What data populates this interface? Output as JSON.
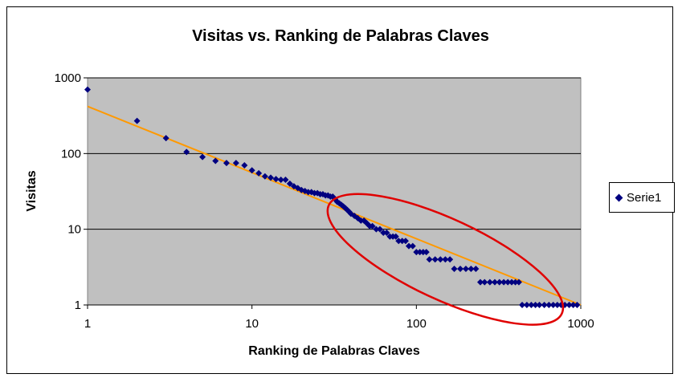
{
  "chart_data": {
    "type": "scatter",
    "title": "Visitas vs. Ranking de Palabras Claves",
    "xlabel": "Ranking de Palabras Claves",
    "ylabel": "Visitas",
    "xscale": "log",
    "yscale": "log",
    "xlim": [
      1,
      1000
    ],
    "ylim": [
      1,
      1000
    ],
    "x_ticks": [
      "1",
      "10",
      "100",
      "1000"
    ],
    "y_ticks": [
      "1",
      "10",
      "100",
      "1000"
    ],
    "grid": "horizontal",
    "plot_background": "#c0c0c0",
    "legend_placement": "right",
    "series": [
      {
        "name": "Serie1",
        "color": "#000080",
        "marker": "diamond",
        "points": [
          [
            1,
            700
          ],
          [
            2,
            270
          ],
          [
            3,
            160
          ],
          [
            4,
            105
          ],
          [
            5,
            90
          ],
          [
            6,
            80
          ],
          [
            7,
            75
          ],
          [
            8,
            75
          ],
          [
            9,
            70
          ],
          [
            10,
            60
          ],
          [
            11,
            55
          ],
          [
            12,
            50
          ],
          [
            13,
            48
          ],
          [
            14,
            46
          ],
          [
            15,
            45
          ],
          [
            16,
            45
          ],
          [
            17,
            40
          ],
          [
            18,
            37
          ],
          [
            19,
            35
          ],
          [
            20,
            33
          ],
          [
            21,
            32
          ],
          [
            22,
            31
          ],
          [
            23,
            31
          ],
          [
            24,
            30
          ],
          [
            25,
            30
          ],
          [
            26,
            29
          ],
          [
            27,
            29
          ],
          [
            28,
            28
          ],
          [
            29,
            28
          ],
          [
            30,
            27
          ],
          [
            31,
            27
          ],
          [
            32,
            25
          ],
          [
            33,
            23
          ],
          [
            34,
            22
          ],
          [
            35,
            21
          ],
          [
            36,
            20
          ],
          [
            37,
            19
          ],
          [
            38,
            18
          ],
          [
            39,
            17
          ],
          [
            40,
            16
          ],
          [
            42,
            15
          ],
          [
            44,
            14
          ],
          [
            46,
            13
          ],
          [
            48,
            13
          ],
          [
            50,
            12
          ],
          [
            52,
            11
          ],
          [
            54,
            11
          ],
          [
            57,
            10
          ],
          [
            60,
            10
          ],
          [
            63,
            9
          ],
          [
            66,
            9
          ],
          [
            69,
            8
          ],
          [
            72,
            8
          ],
          [
            75,
            8
          ],
          [
            78,
            7
          ],
          [
            82,
            7
          ],
          [
            86,
            7
          ],
          [
            90,
            6
          ],
          [
            95,
            6
          ],
          [
            100,
            5
          ],
          [
            105,
            5
          ],
          [
            110,
            5
          ],
          [
            115,
            5
          ],
          [
            120,
            4
          ],
          [
            130,
            4
          ],
          [
            140,
            4
          ],
          [
            150,
            4
          ],
          [
            160,
            4
          ],
          [
            170,
            3
          ],
          [
            185,
            3
          ],
          [
            200,
            3
          ],
          [
            215,
            3
          ],
          [
            230,
            3
          ],
          [
            245,
            2
          ],
          [
            260,
            2
          ],
          [
            280,
            2
          ],
          [
            300,
            2
          ],
          [
            320,
            2
          ],
          [
            340,
            2
          ],
          [
            360,
            2
          ],
          [
            380,
            2
          ],
          [
            400,
            2
          ],
          [
            420,
            2
          ],
          [
            440,
            1
          ],
          [
            470,
            1
          ],
          [
            500,
            1
          ],
          [
            530,
            1
          ],
          [
            560,
            1
          ],
          [
            600,
            1
          ],
          [
            640,
            1
          ],
          [
            680,
            1
          ],
          [
            720,
            1
          ],
          [
            760,
            1
          ],
          [
            800,
            1
          ],
          [
            850,
            1
          ],
          [
            900,
            1
          ],
          [
            950,
            1
          ]
        ]
      }
    ],
    "trendline": {
      "type": "power",
      "color": "#ff9900",
      "start": [
        1,
        420
      ],
      "end": [
        1000,
        1
      ]
    },
    "annotation": {
      "shape": "ellipse",
      "color": "#e00000",
      "center": [
        150,
        4
      ],
      "note": "red ellipse highlighting the tail of the distribution"
    }
  }
}
